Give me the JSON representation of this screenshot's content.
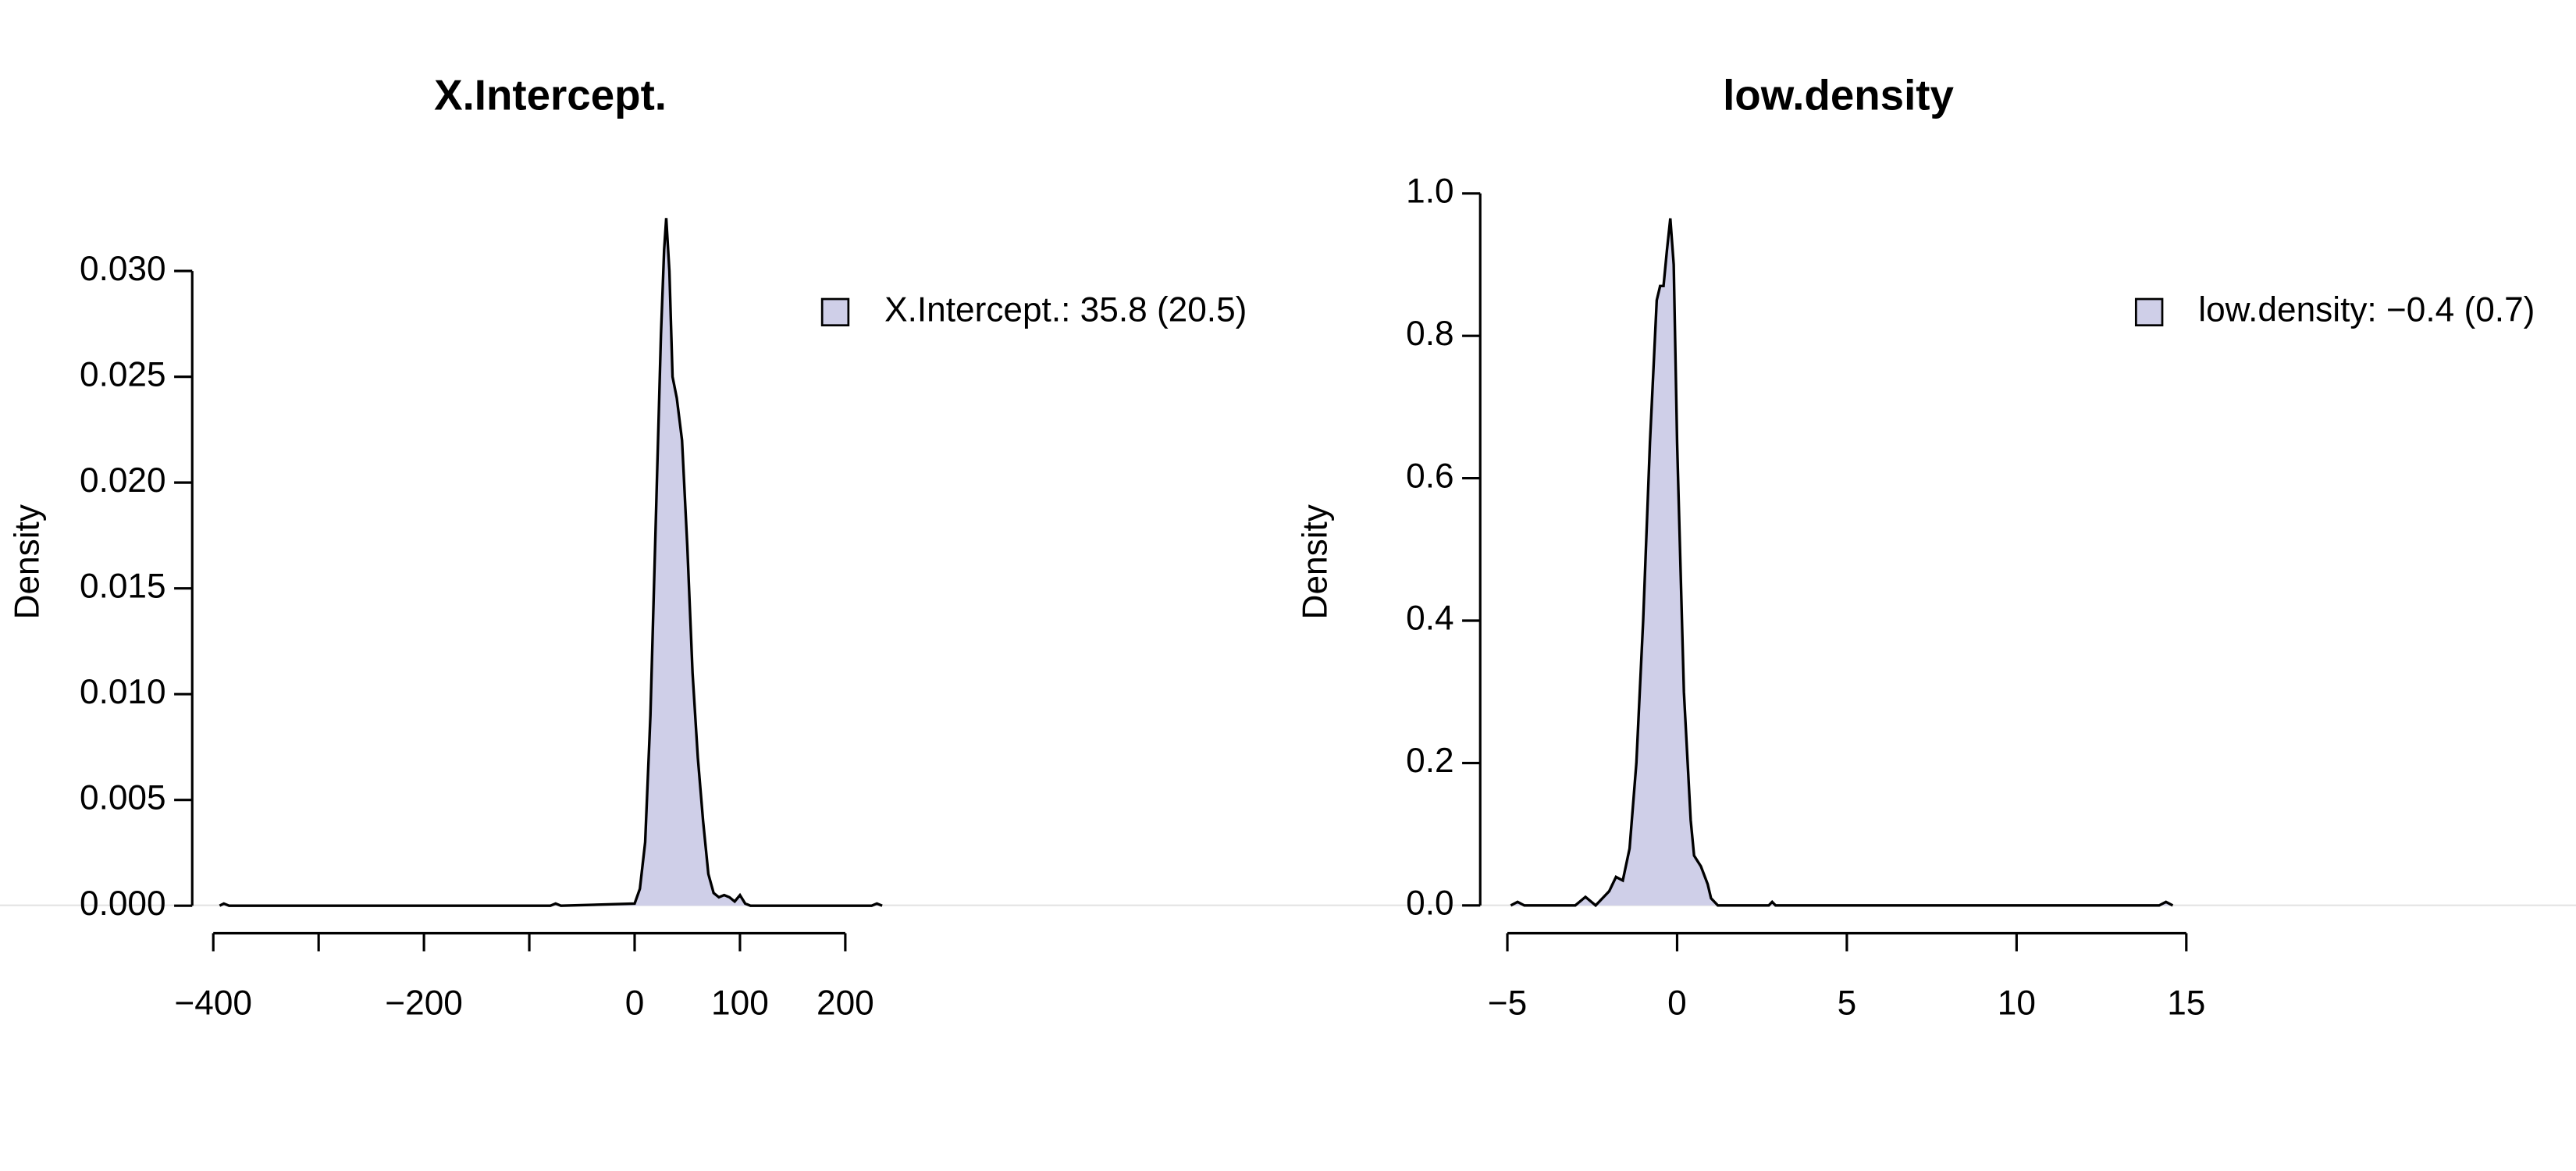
{
  "chart_data": [
    {
      "type": "area",
      "title": "X.Intercept.",
      "ylabel": "Density",
      "x": [
        -394,
        -390,
        -385,
        -80,
        -75,
        -70,
        0,
        5,
        10,
        15,
        20,
        25,
        28,
        30,
        33,
        36,
        40,
        45,
        50,
        55,
        60,
        65,
        70,
        75,
        80,
        85,
        90,
        95,
        100,
        105,
        110,
        225,
        230,
        235
      ],
      "series": [
        {
          "name": "X.Intercept.: 35.8 (20.5)",
          "color": "#cfcfe8",
          "values": [
            0,
            0.0001,
            0,
            0,
            0.0001,
            0,
            0.0001,
            0.0008,
            0.003,
            0.009,
            0.018,
            0.027,
            0.031,
            0.0325,
            0.03,
            0.025,
            0.024,
            0.022,
            0.017,
            0.011,
            0.007,
            0.004,
            0.0015,
            0.0006,
            0.0004,
            0.0005,
            0.0004,
            0.0002,
            0.0005,
            0.0001,
            0,
            0,
            0.0001,
            0
          ]
        }
      ],
      "xlim": [
        -420,
        260
      ],
      "ylim": [
        -0.0013,
        0.0338
      ],
      "xticks": [
        {
          "value": -400,
          "label": "−400"
        },
        {
          "value": -300,
          "label": null
        },
        {
          "value": -200,
          "label": "−200"
        },
        {
          "value": -100,
          "label": null
        },
        0,
        100,
        200
      ],
      "yticks": [
        {
          "value": 0,
          "label": "0.000"
        },
        {
          "value": 0.005,
          "label": "0.005"
        },
        {
          "value": 0.01,
          "label": "0.010"
        },
        {
          "value": 0.015,
          "label": "0.015"
        },
        {
          "value": 0.02,
          "label": "0.020"
        },
        {
          "value": 0.025,
          "label": "0.025"
        },
        {
          "value": 0.03,
          "label": "0.030"
        }
      ],
      "legend": "topright"
    },
    {
      "type": "area",
      "title": "low.density",
      "ylabel": "Density",
      "x": [
        -4.9,
        -4.7,
        -4.5,
        -3,
        -2.7,
        -2.4,
        -2,
        -1.8,
        -1.6,
        -1.4,
        -1.2,
        -1.0,
        -0.8,
        -0.6,
        -0.5,
        -0.4,
        -0.3,
        -0.2,
        -0.1,
        0,
        0.2,
        0.4,
        0.5,
        0.7,
        0.9,
        1.0,
        1.2,
        2.7,
        2.8,
        2.9,
        14.2,
        14.4,
        14.6
      ],
      "series": [
        {
          "name": "low.density: −0.4 (0.7)",
          "color": "#cfcfe8",
          "values": [
            0,
            0.005,
            0,
            0,
            0.012,
            0,
            0.02,
            0.04,
            0.035,
            0.08,
            0.2,
            0.4,
            0.65,
            0.85,
            0.87,
            0.87,
            0.92,
            0.965,
            0.9,
            0.65,
            0.3,
            0.12,
            0.07,
            0.055,
            0.03,
            0.01,
            0,
            0,
            0.005,
            0,
            0,
            0.005,
            0
          ]
        }
      ],
      "xlim": [
        -5.8,
        15.3
      ],
      "ylim": [
        -0.039,
        1.004
      ],
      "xticks": [
        {
          "value": -5,
          "label": "−5"
        },
        0,
        5,
        10,
        15
      ],
      "yticks": [
        {
          "value": 0,
          "label": "0.0"
        },
        {
          "value": 0.2,
          "label": "0.2"
        },
        {
          "value": 0.4,
          "label": "0.4"
        },
        {
          "value": 0.6,
          "label": "0.6"
        },
        {
          "value": 0.8,
          "label": "0.8"
        },
        {
          "value": 1,
          "label": "1.0"
        }
      ],
      "legend": "topright"
    }
  ]
}
